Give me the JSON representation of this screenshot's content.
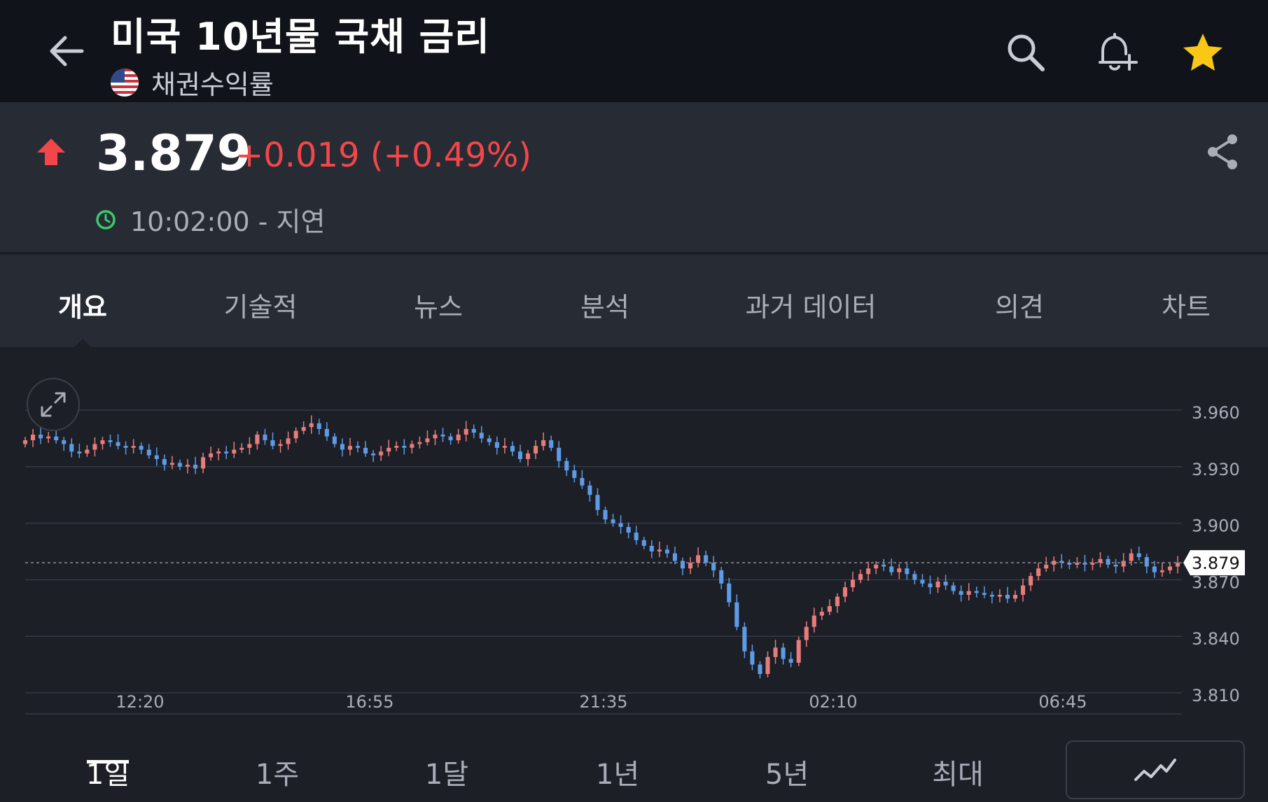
{
  "header": {
    "title": "미국 10년물 국채 금리",
    "subtitle": "채권수익률"
  },
  "quote": {
    "price": "3.879",
    "change": "+0.019 (+0.49%)",
    "time": "10:02:00 - 지연"
  },
  "tabs": [
    {
      "label": "개요",
      "active": true
    },
    {
      "label": "기술적"
    },
    {
      "label": "뉴스"
    },
    {
      "label": "분석"
    },
    {
      "label": "과거 데이터"
    },
    {
      "label": "의견"
    },
    {
      "label": "차트"
    }
  ],
  "ranges": [
    {
      "label": "1일",
      "active": true
    },
    {
      "label": "1주"
    },
    {
      "label": "1달"
    },
    {
      "label": "1년"
    },
    {
      "label": "5년"
    },
    {
      "label": "최대"
    }
  ],
  "colors": {
    "up": "#e87c7c",
    "down": "#5e9be6",
    "accent_red": "#f2474a",
    "star": "#f9c716",
    "clock": "#3ec76b"
  },
  "chart_data": {
    "type": "candlestick",
    "current_value": "3.879",
    "y_ticks": [
      "3.960",
      "3.930",
      "3.900",
      "3.870",
      "3.840",
      "3.810"
    ],
    "x_ticks": [
      "12:20",
      "16:55",
      "21:35",
      "02:10",
      "06:45"
    ],
    "ylim": [
      3.81,
      3.96
    ],
    "grid": true,
    "close_series": [
      3.944,
      3.947,
      3.945,
      3.946,
      3.944,
      3.942,
      3.938,
      3.937,
      3.939,
      3.942,
      3.944,
      3.943,
      3.941,
      3.94,
      3.941,
      3.939,
      3.936,
      3.934,
      3.931,
      3.932,
      3.93,
      3.931,
      3.929,
      3.935,
      3.937,
      3.938,
      3.937,
      3.939,
      3.94,
      3.942,
      3.947,
      3.944,
      3.941,
      3.942,
      3.945,
      3.949,
      3.951,
      3.953,
      3.95,
      3.946,
      3.942,
      3.939,
      3.941,
      3.94,
      3.937,
      3.936,
      3.938,
      3.94,
      3.941,
      3.94,
      3.942,
      3.943,
      3.945,
      3.947,
      3.946,
      3.944,
      3.947,
      3.95,
      3.948,
      3.945,
      3.943,
      3.94,
      3.941,
      3.938,
      3.934,
      3.937,
      3.941,
      3.944,
      3.94,
      3.933,
      3.928,
      3.924,
      3.92,
      3.915,
      3.907,
      3.902,
      3.9,
      3.898,
      3.895,
      3.891,
      3.888,
      3.885,
      3.886,
      3.884,
      3.88,
      3.876,
      3.879,
      3.883,
      3.879,
      3.875,
      3.868,
      3.858,
      3.845,
      3.832,
      3.825,
      3.82,
      3.829,
      3.834,
      3.828,
      3.826,
      3.838,
      3.845,
      3.851,
      3.853,
      3.856,
      3.861,
      3.866,
      3.87,
      3.873,
      3.876,
      3.878,
      3.877,
      3.874,
      3.876,
      3.873,
      3.87,
      3.868,
      3.866,
      3.869,
      3.867,
      3.864,
      3.862,
      3.864,
      3.863,
      3.862,
      3.861,
      3.862,
      3.86,
      3.862,
      3.867,
      3.872,
      3.876,
      3.878,
      3.88,
      3.879,
      3.878,
      3.879,
      3.878,
      3.879,
      3.881,
      3.878,
      3.877,
      3.88,
      3.884,
      3.882,
      3.877,
      3.874,
      3.875,
      3.877,
      3.879
    ]
  }
}
